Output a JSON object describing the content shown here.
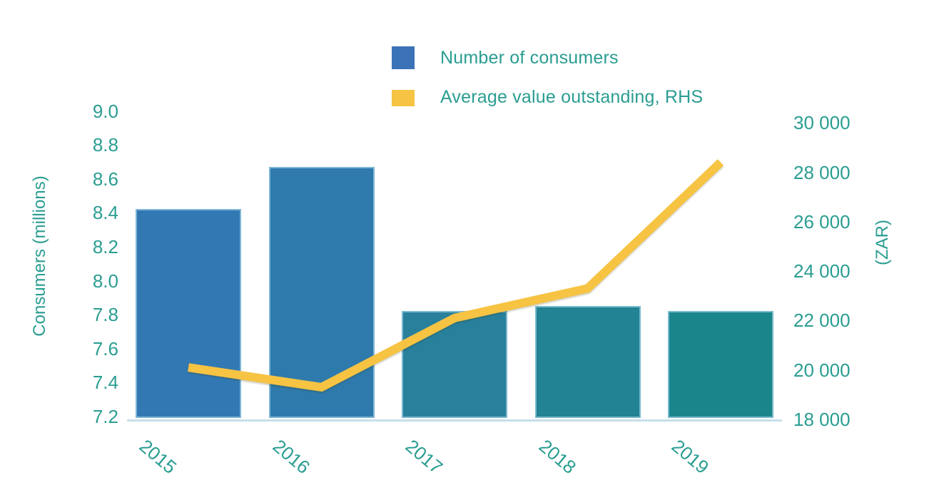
{
  "legend": {
    "items": [
      {
        "label": "Number of consumers",
        "swatch_color": "#3c72b8",
        "series_type": "bar"
      },
      {
        "label": "Average value outstanding, RHS",
        "swatch_color": "#f7c343",
        "series_type": "line"
      }
    ]
  },
  "axes": {
    "left": {
      "title": "Consumers (millions)",
      "ticks": [
        {
          "label": "9.0",
          "value": 9.0
        },
        {
          "label": "8.8",
          "value": 8.8
        },
        {
          "label": "8.6",
          "value": 8.6
        },
        {
          "label": "8.4",
          "value": 8.4
        },
        {
          "label": "8.2",
          "value": 8.2
        },
        {
          "label": "8.0",
          "value": 8.0
        },
        {
          "label": "7.8",
          "value": 7.8
        },
        {
          "label": "7.6",
          "value": 7.6
        },
        {
          "label": "7.4",
          "value": 7.4
        },
        {
          "label": "7.2",
          "value": 7.2
        }
      ]
    },
    "right": {
      "title": "(ZAR)",
      "ticks": [
        {
          "label": "30 000",
          "value": 30000
        },
        {
          "label": "28 000",
          "value": 28000
        },
        {
          "label": "26 000",
          "value": 26000
        },
        {
          "label": "24 000",
          "value": 24000
        },
        {
          "label": "22 000",
          "value": 22000
        },
        {
          "label": "20 000",
          "value": 20000
        },
        {
          "label": "18 000",
          "value": 18000
        }
      ]
    },
    "x": {
      "labels": [
        "2015",
        "2016",
        "2017",
        "2018",
        "2019"
      ]
    }
  },
  "chart_data": {
    "type": "bar+line",
    "categories": [
      "2015",
      "2016",
      "2017",
      "2018",
      "2019"
    ],
    "series": [
      {
        "name": "Number of consumers",
        "type": "bar",
        "axis": "left",
        "values": [
          8.43,
          8.68,
          7.83,
          7.86,
          7.83
        ],
        "bar_colors": [
          "#3279b4",
          "#2e7aad",
          "#28809d",
          "#218394",
          "#1b858c"
        ]
      },
      {
        "name": "Average value outstanding, RHS",
        "type": "line",
        "axis": "right",
        "values": [
          20100,
          19300,
          22100,
          23300,
          28400
        ],
        "color": "#f7c343",
        "stroke_width": 12
      }
    ],
    "left_ylabel": "Consumers (millions)",
    "right_ylabel": "(ZAR)",
    "left_ylim": [
      7.2,
      9.0
    ],
    "right_ylim": [
      18000,
      30000
    ],
    "grid": false,
    "legend_position": "top-center"
  },
  "colors": {
    "text_teal": "#2a9d91",
    "bar_stroke": "#9fd2e6",
    "baseline": "#c6dfeb"
  }
}
